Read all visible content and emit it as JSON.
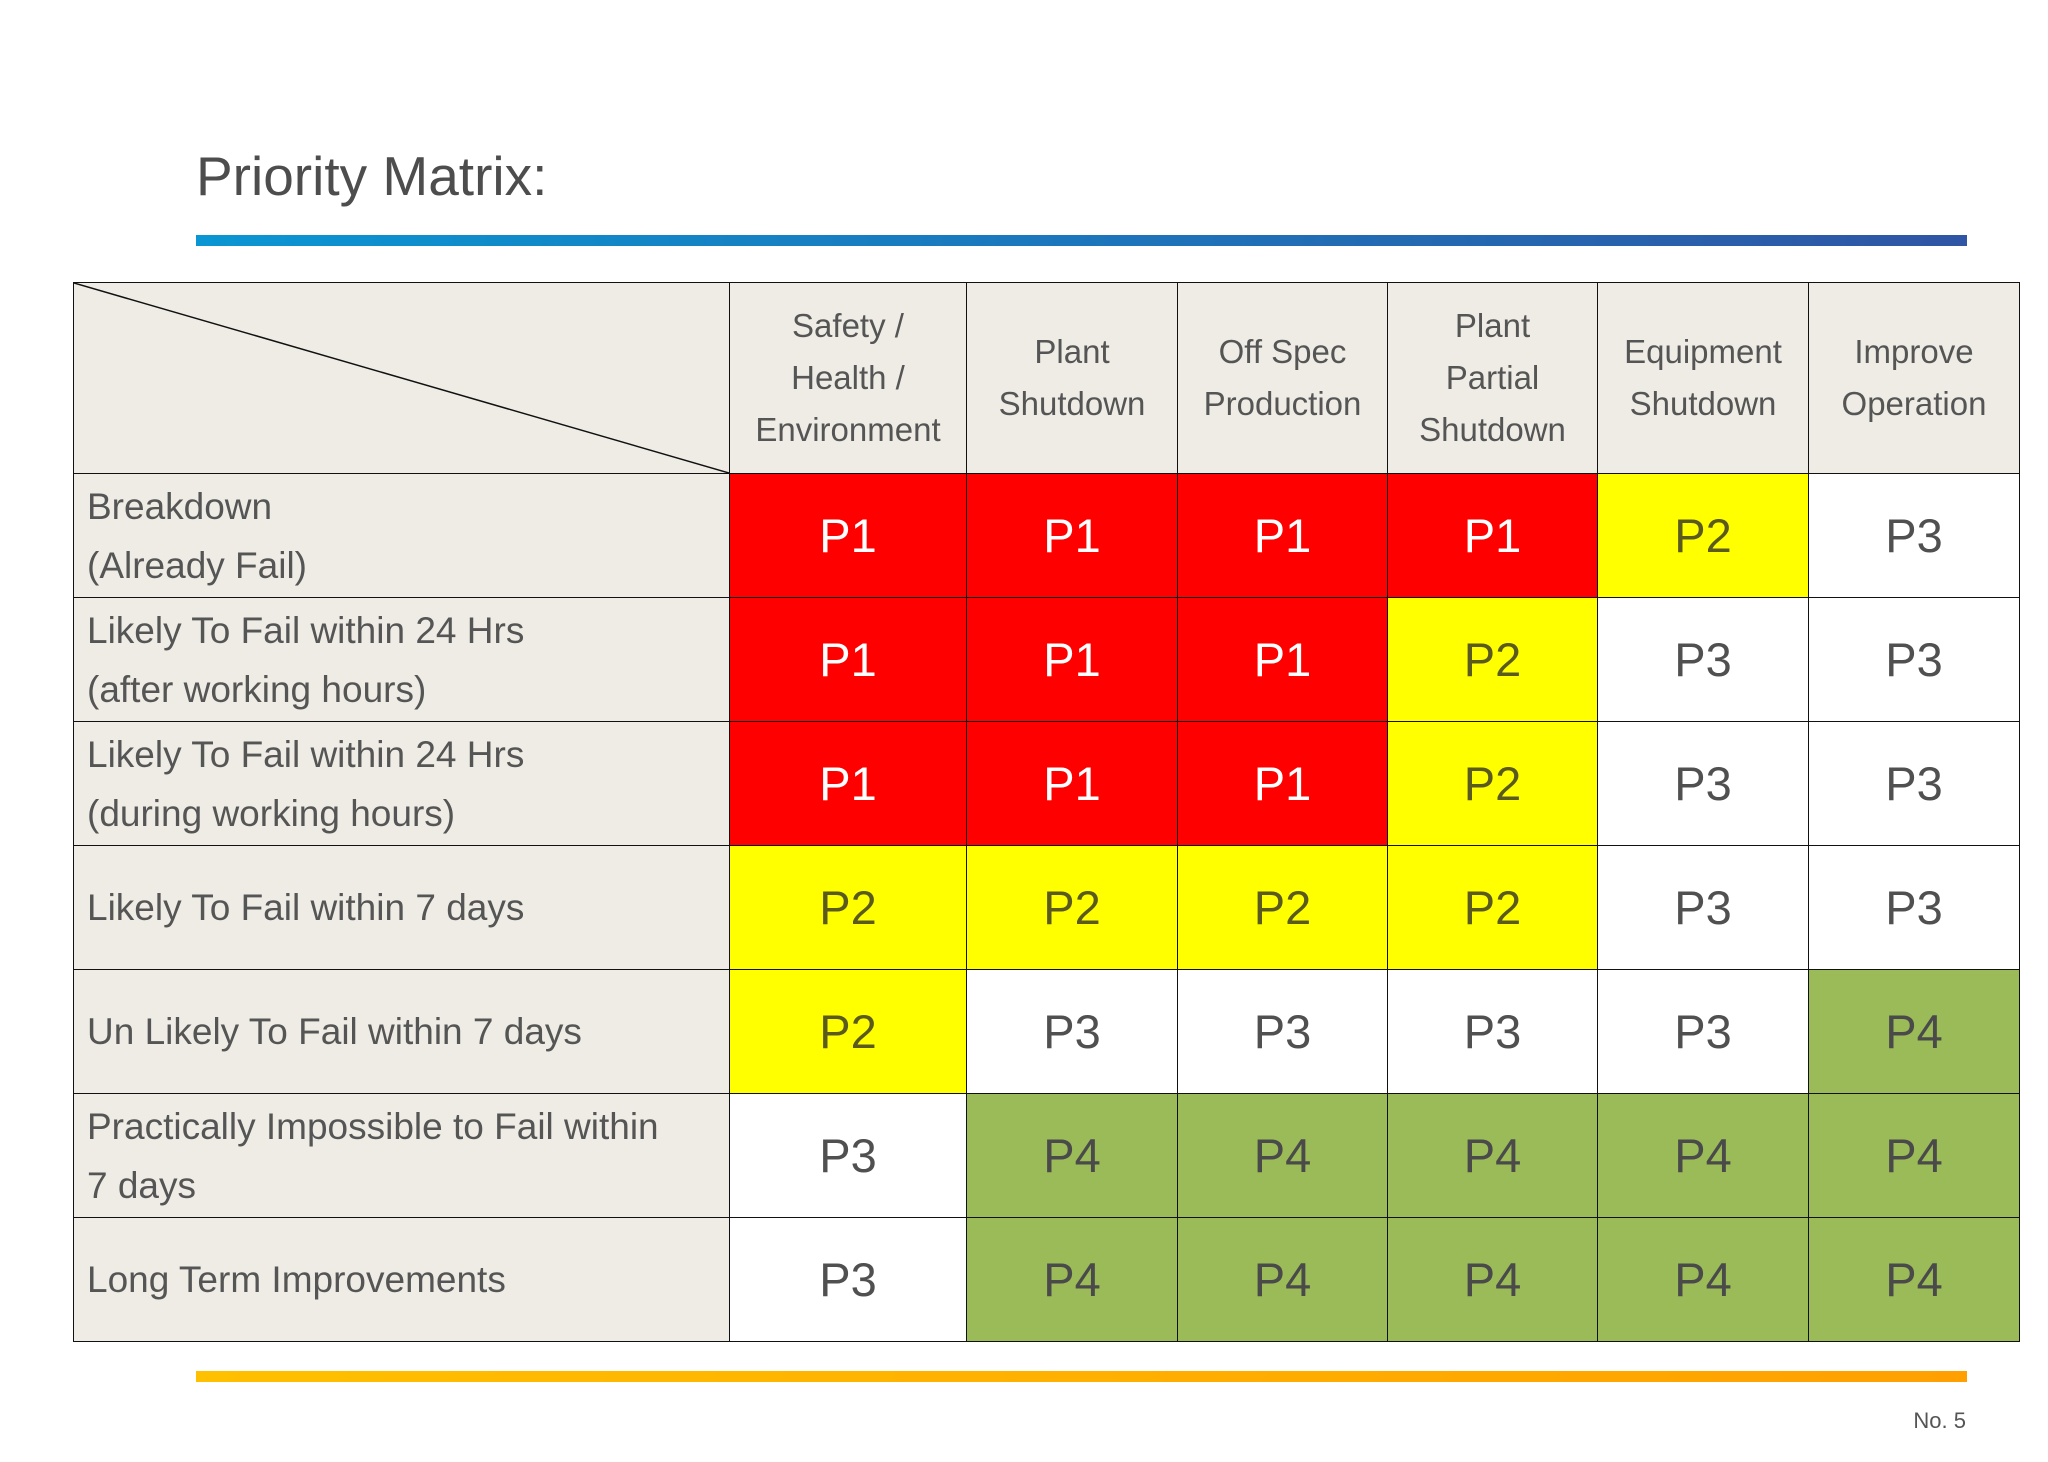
{
  "header": {
    "title": "Priority Matrix:"
  },
  "table": {
    "columns": [
      [
        "Safety /",
        "Health /",
        "Environment"
      ],
      [
        "Plant",
        "Shutdown"
      ],
      [
        "Off Spec",
        "Production"
      ],
      [
        "Plant",
        "Partial",
        "Shutdown"
      ],
      [
        "Equipment",
        "Shutdown"
      ],
      [
        "Improve",
        "Operation"
      ]
    ],
    "rows": [
      {
        "label": [
          "Breakdown",
          "(Already Fail)"
        ],
        "cells": [
          "P1",
          "P1",
          "P1",
          "P1",
          "P2",
          "P3"
        ]
      },
      {
        "label": [
          "Likely To Fail within 24 Hrs",
          "(after working hours)"
        ],
        "cells": [
          "P1",
          "P1",
          "P1",
          "P2",
          "P3",
          "P3"
        ]
      },
      {
        "label": [
          "Likely To Fail within 24 Hrs",
          "(during working hours)"
        ],
        "cells": [
          "P1",
          "P1",
          "P1",
          "P2",
          "P3",
          "P3"
        ]
      },
      {
        "label": [
          "Likely To Fail within 7 days"
        ],
        "cells": [
          "P2",
          "P2",
          "P2",
          "P2",
          "P3",
          "P3"
        ]
      },
      {
        "label": [
          "Un Likely To Fail within 7 days"
        ],
        "cells": [
          "P2",
          "P3",
          "P3",
          "P3",
          "P3",
          "P4"
        ]
      },
      {
        "label": [
          "Practically Impossible to Fail within",
          "7 days"
        ],
        "cells": [
          "P3",
          "P4",
          "P4",
          "P4",
          "P4",
          "P4"
        ]
      },
      {
        "label": [
          "Long Term Improvements"
        ],
        "cells": [
          "P3",
          "P4",
          "P4",
          "P4",
          "P4",
          "P4"
        ]
      }
    ],
    "styles": {
      "P1": {
        "fill": "#ff0000",
        "text": "#ffffff"
      },
      "P2": {
        "fill": "#ffff00",
        "text": "#5a5a1e"
      },
      "P3": {
        "fill": "#ffffff",
        "text": "#505050"
      },
      "P4": {
        "fill": "#9bbb59",
        "text": "#4a4a4a"
      }
    }
  },
  "footer": {
    "page": "No. 5"
  }
}
